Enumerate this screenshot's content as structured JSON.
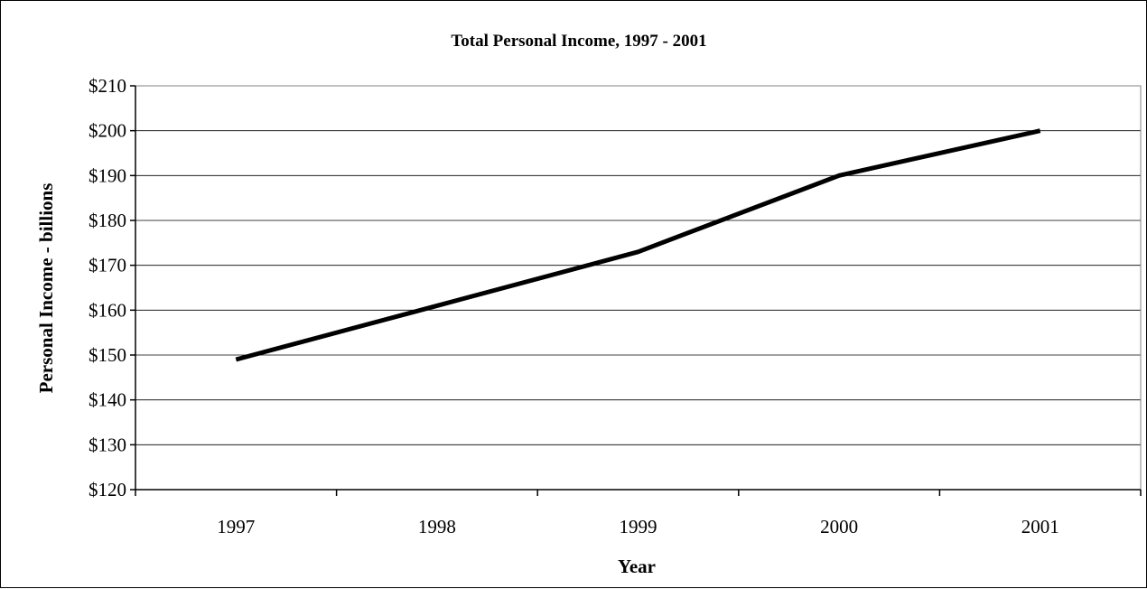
{
  "chart_data": {
    "type": "line",
    "title": "Total Personal Income, 1997 - 2001",
    "xlabel": "Year",
    "ylabel": "Personal Income - billions",
    "categories": [
      "1997",
      "1998",
      "1999",
      "2000",
      "2001"
    ],
    "series": [
      {
        "values": [
          149,
          161,
          173,
          190,
          200
        ],
        "color": "#000000"
      }
    ],
    "ylim": [
      120,
      210
    ],
    "ytick_step": 10,
    "ytick_labels": [
      "$120",
      "$130",
      "$140",
      "$150",
      "$160",
      "$170",
      "$180",
      "$190",
      "$200",
      "$210"
    ],
    "grid": true,
    "legend": "none"
  }
}
